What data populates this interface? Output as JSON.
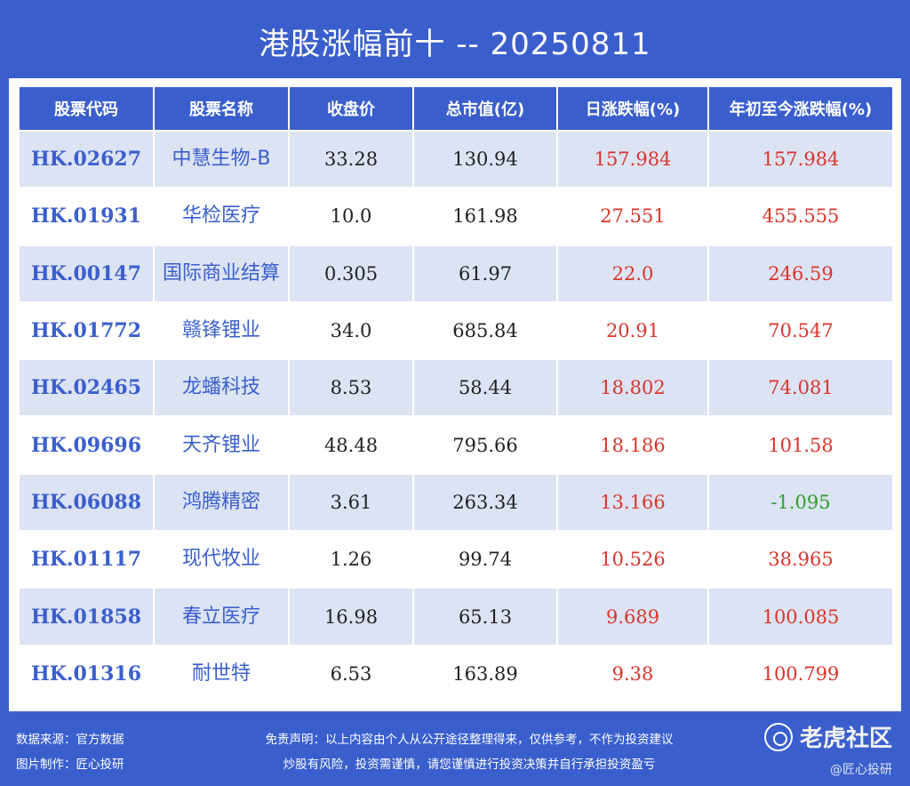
{
  "title": "港股涨幅前十 -- 20250811",
  "table": {
    "headers": [
      "股票代码",
      "股票名称",
      "收盘价",
      "总市值(亿)",
      "日涨跌幅(%)",
      "年初至今涨跌幅(%)"
    ],
    "rows": [
      {
        "code": "HK.02627",
        "name": "中慧生物-B",
        "close": "33.28",
        "cap": "130.94",
        "day": "157.984",
        "ytd": "157.984",
        "ytd_dir": "up"
      },
      {
        "code": "HK.01931",
        "name": "华检医疗",
        "close": "10.0",
        "cap": "161.98",
        "day": "27.551",
        "ytd": "455.555",
        "ytd_dir": "up"
      },
      {
        "code": "HK.00147",
        "name": "国际商业结算",
        "close": "0.305",
        "cap": "61.97",
        "day": "22.0",
        "ytd": "246.59",
        "ytd_dir": "up"
      },
      {
        "code": "HK.01772",
        "name": "赣锋锂业",
        "close": "34.0",
        "cap": "685.84",
        "day": "20.91",
        "ytd": "70.547",
        "ytd_dir": "up"
      },
      {
        "code": "HK.02465",
        "name": "龙蟠科技",
        "close": "8.53",
        "cap": "58.44",
        "day": "18.802",
        "ytd": "74.081",
        "ytd_dir": "up"
      },
      {
        "code": "HK.09696",
        "name": "天齐锂业",
        "close": "48.48",
        "cap": "795.66",
        "day": "18.186",
        "ytd": "101.58",
        "ytd_dir": "up"
      },
      {
        "code": "HK.06088",
        "name": "鸿腾精密",
        "close": "3.61",
        "cap": "263.34",
        "day": "13.166",
        "ytd": "-1.095",
        "ytd_dir": "down"
      },
      {
        "code": "HK.01117",
        "name": "现代牧业",
        "close": "1.26",
        "cap": "99.74",
        "day": "10.526",
        "ytd": "38.965",
        "ytd_dir": "up"
      },
      {
        "code": "HK.01858",
        "name": "春立医疗",
        "close": "16.98",
        "cap": "65.13",
        "day": "9.689",
        "ytd": "100.085",
        "ytd_dir": "up"
      },
      {
        "code": "HK.01316",
        "name": "耐世特",
        "close": "6.53",
        "cap": "163.89",
        "day": "9.38",
        "ytd": "100.799",
        "ytd_dir": "up"
      }
    ]
  },
  "footer": {
    "source": "数据来源：官方数据",
    "maker": "图片制作：匠心投研",
    "disclaimer_1": "免责声明：以上内容由个人从公开途径整理得来，仅供参考，不作为投资建议",
    "disclaimer_2": "炒股有风险，投资需谨慎，请您谨慎进行投资决策并自行承担投资盈亏"
  },
  "watermark": {
    "logo_text": "老虎社区",
    "handle": "@匠心投研"
  },
  "colors": {
    "background": "#3a5fcd",
    "row_alt": "#dce3f3",
    "up": "#d9362b",
    "down": "#2f9e2f"
  }
}
